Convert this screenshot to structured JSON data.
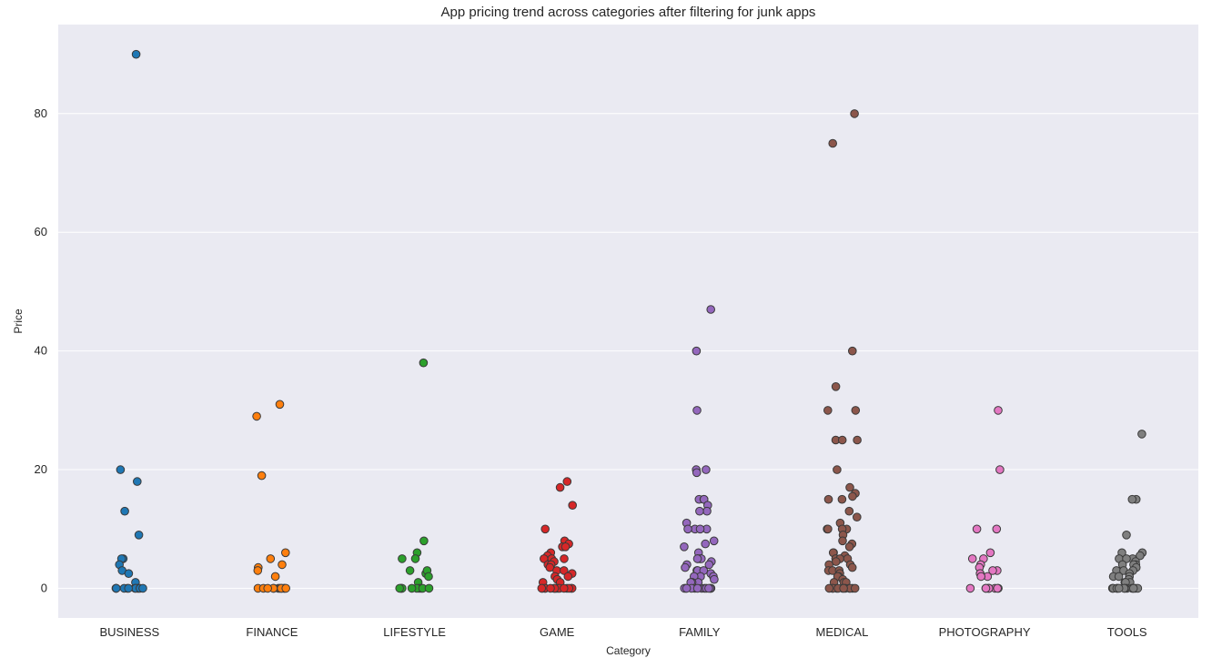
{
  "chart_data": {
    "type": "scatter",
    "subtype": "stripplot",
    "title": "App pricing trend across categories after filtering for junk apps",
    "xlabel": "Category",
    "ylabel": "Price",
    "ylim": [
      -5,
      95
    ],
    "yticks": [
      0,
      20,
      40,
      60,
      80
    ],
    "grid": true,
    "style": "seaborn-darkgrid",
    "categories": [
      "BUSINESS",
      "FINANCE",
      "LIFESTYLE",
      "GAME",
      "FAMILY",
      "MEDICAL",
      "PHOTOGRAPHY",
      "TOOLS"
    ],
    "colors": [
      "#1f77b4",
      "#ff7f0e",
      "#2ca02c",
      "#d62728",
      "#9467bd",
      "#8c564b",
      "#e377c2",
      "#7f7f7f"
    ],
    "series": [
      {
        "category": "BUSINESS",
        "values": [
          89.99,
          19.99,
          17.99,
          12.99,
          8.99,
          4.99,
          4.99,
          3.99,
          2.99,
          2.49,
          0.99,
          0,
          0,
          0,
          0,
          0,
          0,
          0,
          0,
          0,
          0,
          0,
          0
        ]
      },
      {
        "category": "FINANCE",
        "values": [
          30.99,
          28.99,
          18.99,
          5.99,
          4.99,
          3.99,
          3.49,
          2.99,
          1.99,
          0,
          0,
          0,
          0,
          0,
          0,
          0,
          0,
          0,
          0,
          0,
          0
        ]
      },
      {
        "category": "LIFESTYLE",
        "values": [
          37.99,
          7.99,
          5.99,
          4.99,
          4.99,
          2.99,
          2.49,
          2.99,
          1.99,
          0.99,
          0,
          0,
          0,
          0,
          0,
          0,
          0,
          0,
          0,
          0
        ]
      },
      {
        "category": "GAME",
        "values": [
          17.99,
          16.99,
          13.99,
          9.99,
          7.99,
          7.49,
          6.99,
          6.99,
          5.99,
          5.49,
          4.99,
          4.99,
          4.99,
          4.49,
          3.99,
          3.99,
          3.49,
          2.99,
          2.99,
          2.49,
          1.99,
          1.99,
          1.49,
          0.99,
          0.99,
          0,
          0,
          0,
          0,
          0,
          0,
          0,
          0,
          0,
          0,
          0,
          0,
          0,
          0,
          0,
          0
        ]
      },
      {
        "category": "FAMILY",
        "values": [
          46.99,
          39.99,
          29.99,
          19.99,
          19.99,
          19.49,
          14.99,
          14.99,
          14.99,
          13.99,
          12.99,
          12.99,
          10.99,
          9.99,
          9.99,
          9.99,
          9.99,
          7.99,
          7.49,
          6.99,
          5.99,
          4.99,
          4.99,
          4.99,
          4.99,
          4.49,
          3.99,
          3.99,
          3.49,
          2.99,
          2.99,
          2.99,
          2.49,
          1.99,
          1.99,
          1.99,
          1.49,
          0.99,
          0.99,
          0.99,
          0,
          0,
          0,
          0,
          0,
          0,
          0,
          0,
          0,
          0,
          0,
          0
        ]
      },
      {
        "category": "MEDICAL",
        "values": [
          79.99,
          74.99,
          39.99,
          33.99,
          29.99,
          29.99,
          24.99,
          24.99,
          24.99,
          19.99,
          16.99,
          15.99,
          15.49,
          14.99,
          14.99,
          12.99,
          11.99,
          10.99,
          9.99,
          9.99,
          9.99,
          9.99,
          8.99,
          7.99,
          7.49,
          6.99,
          5.99,
          5.99,
          5.49,
          4.99,
          4.99,
          4.99,
          4.49,
          3.99,
          3.99,
          3.49,
          2.99,
          2.99,
          2.99,
          2.49,
          1.99,
          1.99,
          1.49,
          0.99,
          0.99,
          0.99,
          0,
          0,
          0,
          0,
          0,
          0,
          0,
          0,
          0,
          0,
          0,
          0
        ]
      },
      {
        "category": "PHOTOGRAPHY",
        "values": [
          29.99,
          19.99,
          9.99,
          9.99,
          5.99,
          4.99,
          4.99,
          3.99,
          3.49,
          2.99,
          2.99,
          2.49,
          1.99,
          1.99,
          0,
          0,
          0,
          0,
          0,
          0,
          0,
          0,
          0
        ]
      },
      {
        "category": "TOOLS",
        "values": [
          25.99,
          14.99,
          14.99,
          8.99,
          5.99,
          5.99,
          5.49,
          4.99,
          4.99,
          4.99,
          4.49,
          3.99,
          3.99,
          3.99,
          3.49,
          2.99,
          2.99,
          2.99,
          2.49,
          1.99,
          1.99,
          1.99,
          1.49,
          0.99,
          0.99,
          0.99,
          0,
          0,
          0,
          0,
          0,
          0,
          0,
          0,
          0,
          0,
          0,
          0,
          0
        ]
      }
    ]
  }
}
